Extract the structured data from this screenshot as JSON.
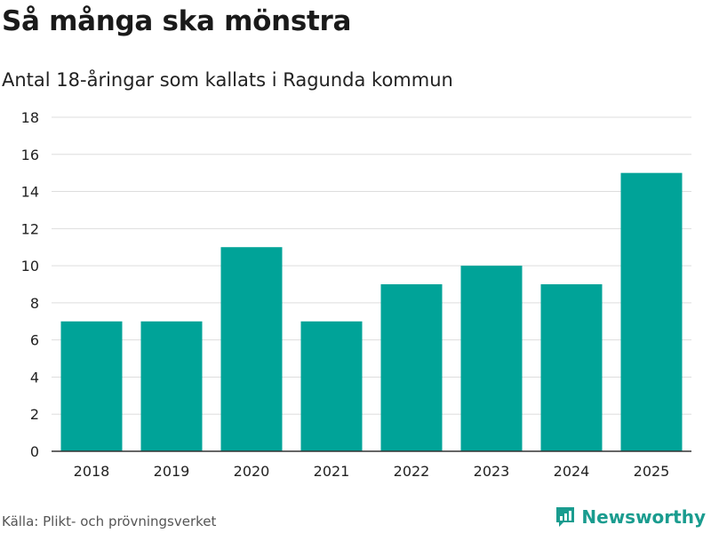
{
  "header": {
    "title": "Så många ska mönstra",
    "subtitle": "Antal 18-åringar som kallats i Ragunda kommun"
  },
  "footer": {
    "source": "Källa: Plikt- och prövningsverket",
    "brand": "Newsworthy",
    "brand_icon": "newsworthy-logo-icon"
  },
  "colors": {
    "bar": "#00a398",
    "grid": "#dddddd",
    "axis": "#333333",
    "brand": "#1a9c8f"
  },
  "chart_data": {
    "type": "bar",
    "title": "Så många ska mönstra",
    "subtitle": "Antal 18-åringar som kallats i Ragunda kommun",
    "categories": [
      "2018",
      "2019",
      "2020",
      "2021",
      "2022",
      "2023",
      "2024",
      "2025"
    ],
    "values": [
      7,
      7,
      11,
      7,
      9,
      10,
      9,
      15
    ],
    "yticks": [
      0,
      2,
      4,
      6,
      8,
      10,
      12,
      14,
      16,
      18
    ],
    "ylim": [
      0,
      18
    ],
    "xlabel": "",
    "ylabel": "",
    "grid": true,
    "legend": "none"
  }
}
